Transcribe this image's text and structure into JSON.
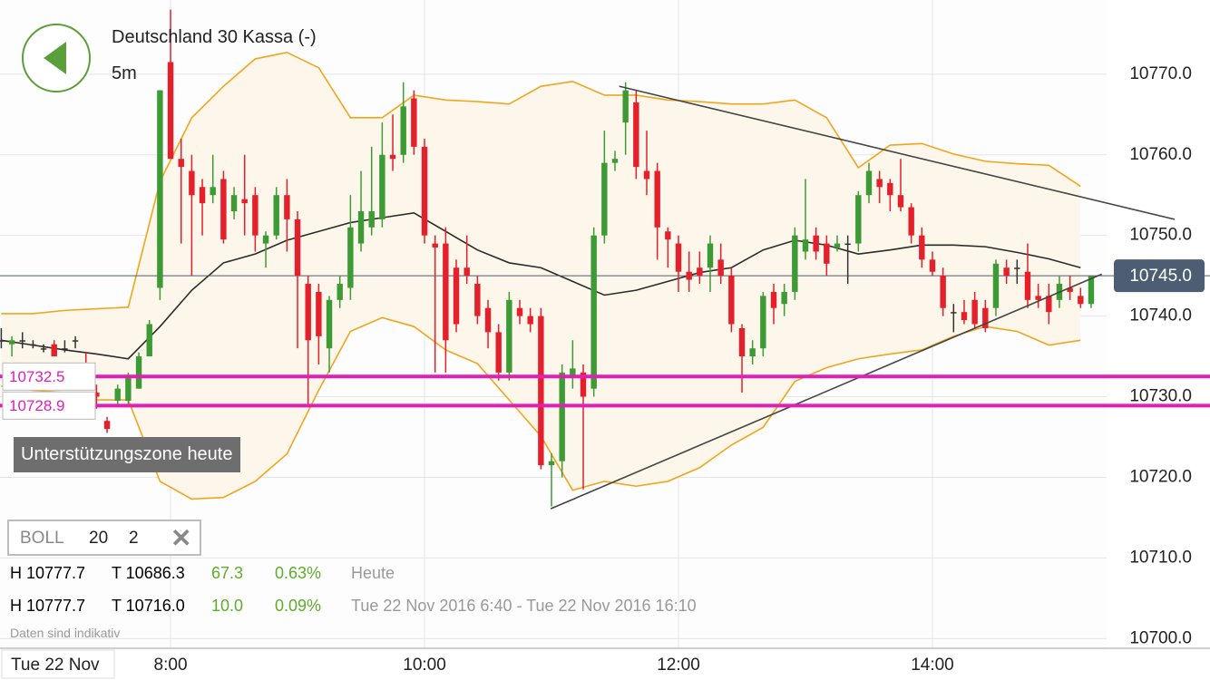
{
  "chart_data": {
    "type": "candlestick",
    "title": "Deutschland 30 Kassa (-)",
    "subtitle": "5m",
    "date_label": "Tue 22 Nov",
    "xlim": [
      399.4,
      922.3
    ],
    "ylim": [
      10698.8,
      10779.2
    ],
    "xticks": [
      {
        "value": 480,
        "label": "8:00"
      },
      {
        "value": 600,
        "label": "10:00"
      },
      {
        "value": 720,
        "label": "12:00"
      },
      {
        "value": 840,
        "label": "14:00"
      }
    ],
    "yticks": [
      {
        "value": 10700,
        "label": "10700.0"
      },
      {
        "value": 10710,
        "label": "10710.0"
      },
      {
        "value": 10720,
        "label": "10720.0"
      },
      {
        "value": 10730,
        "label": "10730.0"
      },
      {
        "value": 10740,
        "label": "10740.0"
      },
      {
        "value": 10750,
        "label": "10750.0"
      },
      {
        "value": 10760,
        "label": "10760.0"
      },
      {
        "value": 10770,
        "label": "10770.0"
      }
    ],
    "grid": true,
    "up_color": "#3d9b35",
    "down_color": "#e3202b",
    "flat_color": "#333333",
    "x": [
      400,
      405,
      410,
      415,
      420,
      425,
      430,
      435,
      440,
      445,
      450,
      455,
      460,
      465,
      470,
      475,
      480,
      485,
      490,
      495,
      500,
      505,
      510,
      515,
      520,
      525,
      530,
      535,
      540,
      545,
      550,
      555,
      560,
      565,
      570,
      575,
      580,
      585,
      590,
      595,
      600,
      605,
      610,
      615,
      620,
      625,
      630,
      635,
      640,
      645,
      650,
      655,
      660,
      665,
      670,
      675,
      680,
      685,
      690,
      695,
      700,
      705,
      710,
      715,
      720,
      725,
      730,
      735,
      740,
      745,
      750,
      755,
      760,
      765,
      770,
      775,
      780,
      785,
      790,
      795,
      800,
      805,
      810,
      815,
      820,
      825,
      830,
      835,
      840,
      845,
      850,
      855,
      860,
      865,
      870,
      875,
      880,
      885,
      890,
      895,
      900,
      905,
      910,
      915
    ],
    "open": [
      10737,
      10736.5,
      10737,
      10736.5,
      10736,
      10736.5,
      10736,
      10737,
      10734,
      10730.5,
      10727,
      10729.5,
      10729.5,
      10731,
      10735,
      10743.5,
      10771.5,
      10759.5,
      10758,
      10756,
      10755,
      10757,
      10753,
      10754.5,
      10755,
      10749,
      10750,
      10755,
      10752,
      10744,
      10743,
      10736,
      10742,
      10743.5,
      10749,
      10751,
      10752,
      10760,
      10760,
      10767,
      10761,
      10749,
      10749,
      10746,
      10746,
      10744,
      10741,
      10738,
      10733,
      10741,
      10740,
      10740,
      10721.5,
      10722,
      10732.5,
      10733,
      10731,
      10750,
      10759,
      10764,
      10766.5,
      10758,
      10758,
      10750.5,
      10749,
      10745.5,
      10746,
      10746,
      10747,
      10745,
      10738.5,
      10735,
      10736,
      10743,
      10741.5,
      10743,
      10748,
      10750,
      10749,
      10748.5,
      10749,
      10749,
      10755,
      10757,
      10756.5,
      10755,
      10753.5,
      10750,
      10747,
      10745,
      10740.5,
      10740.5,
      10742,
      10741,
      10741,
      10746,
      10746,
      10745.5,
      10742.5,
      10742.5,
      10742,
      10743.5,
      10742.5,
      10741.5
    ],
    "high": [
      10738.5,
      10737.5,
      10738,
      10737,
      10736.5,
      10737,
      10737,
      10737.5,
      10735.5,
      10731.5,
      10727.5,
      10731.5,
      10733,
      10735.5,
      10739.5,
      10768,
      10778,
      10762,
      10760,
      10757,
      10760,
      10758,
      10756,
      10760,
      10756,
      10750.5,
      10756,
      10757,
      10753,
      10745,
      10744,
      10742.5,
      10745,
      10755,
      10758,
      10761,
      10764,
      10765,
      10769,
      10768,
      10762,
      10750,
      10751,
      10747,
      10750,
      10745,
      10742,
      10739,
      10743,
      10742,
      10741,
      10741,
      10723,
      10734,
      10737,
      10734,
      10751,
      10763,
      10760.5,
      10769,
      10768,
      10763,
      10759,
      10751,
      10750,
      10748,
      10748,
      10750,
      10749,
      10746,
      10739,
      10737,
      10743,
      10744,
      10744,
      10751,
      10757,
      10751,
      10750,
      10750,
      10750,
      10755.5,
      10759,
      10758,
      10757,
      10759.5,
      10754,
      10751,
      10748,
      10746,
      10741.5,
      10742,
      10743,
      10742,
      10747,
      10747,
      10747,
      10749,
      10744,
      10744,
      10745,
      10745,
      10743.5,
      10745
    ],
    "low": [
      10736,
      10735,
      10736,
      10736,
      10735.5,
      10735,
      10735.5,
      10736,
      10731,
      10728.5,
      10725.5,
      10729,
      10729,
      10731,
      10735,
      10742,
      10759.5,
      10749,
      10745,
      10750,
      10754,
      10749,
      10752,
      10750,
      10748,
      10746,
      10749.5,
      10748,
      10736,
      10729,
      10734,
      10733,
      10741,
      10742,
      10748,
      10750,
      10751,
      10758,
      10759,
      10760,
      10749,
      10733,
      10733,
      10738,
      10744,
      10739,
      10736,
      10732,
      10732,
      10739,
      10738,
      10721,
      10716.4,
      10720,
      10731,
      10718.5,
      10730,
      10749,
      10758,
      10760,
      10757,
      10755,
      10747,
      10746,
      10743,
      10743,
      10744,
      10743,
      10744,
      10738,
      10730.5,
      10734,
      10735,
      10739,
      10740,
      10742,
      10747,
      10747,
      10745,
      10748,
      10744,
      10748,
      10754,
      10754,
      10753,
      10753,
      10749,
      10746,
      10745,
      10740,
      10738,
      10739,
      10738.5,
      10738,
      10740,
      10744,
      10744,
      10741,
      10741,
      10739,
      10741,
      10742,
      10741,
      10741
    ],
    "close": [
      10737,
      10737,
      10737,
      10736.5,
      10736,
      10735,
      10736,
      10737,
      10732,
      10730,
      10726,
      10731,
      10732.5,
      10735,
      10739,
      10768,
      10759.5,
      10758.5,
      10755,
      10754,
      10756,
      10749.5,
      10755,
      10754,
      10750,
      10750,
      10755,
      10752,
      10745,
      10737,
      10737.5,
      10742,
      10744,
      10751,
      10753,
      10753,
      10760,
      10759.5,
      10766,
      10761,
      10750,
      10748.5,
      10737,
      10739,
      10745,
      10740,
      10738,
      10733,
      10742,
      10740,
      10739,
      10721.5,
      10722,
      10733,
      10733.5,
      10730,
      10750,
      10759,
      10759.5,
      10768,
      10758.5,
      10757,
      10751,
      10749.5,
      10745.5,
      10744.5,
      10745,
      10749,
      10745,
      10739,
      10735,
      10736,
      10742.5,
      10741,
      10743,
      10750,
      10749.5,
      10748,
      10746.5,
      10749,
      10749,
      10755,
      10758,
      10756,
      10755,
      10753.5,
      10750,
      10747,
      10745.5,
      10741,
      10740.5,
      10739.5,
      10739,
      10738.5,
      10746.5,
      10745,
      10746,
      10742,
      10742,
      10740.5,
      10744,
      10743,
      10741.5,
      10745
    ],
    "bollinger": {
      "color": "#f2a51c",
      "fill": "#fdf6ea",
      "middle_color": "#2b2b2b",
      "x": [
        400,
        415,
        430,
        445,
        460,
        475,
        490,
        505,
        520,
        535,
        550,
        565,
        580,
        595,
        610,
        625,
        640,
        655,
        670,
        685,
        700,
        715,
        730,
        745,
        760,
        775,
        790,
        805,
        820,
        835,
        850,
        865,
        880,
        895,
        910
      ],
      "upper": [
        10740.3,
        10740.3,
        10740.7,
        10740.9,
        10741.1,
        10756.7,
        10764.6,
        10768.5,
        10771.9,
        10772.7,
        10770.8,
        10764.6,
        10764.6,
        10767.4,
        10766.8,
        10766.6,
        10766.3,
        10768.5,
        10769.1,
        10767.4,
        10767.4,
        10766.8,
        10766.6,
        10766.3,
        10766.3,
        10766.8,
        10764.6,
        10758.4,
        10761.2,
        10761.4,
        10760.1,
        10759.2,
        10758.9,
        10758.7,
        10756.1
      ],
      "middle": [
        10737.0,
        10736.4,
        10735.8,
        10735.3,
        10734.7,
        10738.7,
        10743.2,
        10746.6,
        10747.7,
        10749.4,
        10750.5,
        10751.6,
        10752.2,
        10752.8,
        10750.5,
        10748.2,
        10746.6,
        10746.0,
        10744.3,
        10742.6,
        10743.2,
        10744.3,
        10745.4,
        10746.0,
        10748.2,
        10749.4,
        10748.8,
        10747.7,
        10748.2,
        10748.8,
        10748.8,
        10748.6,
        10747.9,
        10747.1,
        10746.0
      ],
      "lower": [
        10731.3,
        10730.8,
        10730.5,
        10729.6,
        10729.6,
        10719.5,
        10717.3,
        10717.5,
        10719.5,
        10722.9,
        10730.8,
        10738.1,
        10739.8,
        10738.7,
        10735.8,
        10734.1,
        10729.6,
        10725.1,
        10718.4,
        10719.5,
        10718.9,
        10719.5,
        10721.2,
        10724.0,
        10726.2,
        10731.9,
        10733.6,
        10734.7,
        10735.3,
        10735.8,
        10737.5,
        10738.7,
        10738.1,
        10736.4,
        10737.0
      ]
    },
    "trendlines": [
      {
        "x": [
          692,
          954.4
        ],
        "y": [
          10768.5,
          10752.0
        ],
        "color": "#444444"
      },
      {
        "x": [
          659.6,
          920
        ],
        "y": [
          10716.1,
          10745.2
        ],
        "color": "#444444"
      }
    ],
    "levels": [
      {
        "value": 10732.5,
        "color": "#e21fb4"
      },
      {
        "value": 10728.9,
        "color": "#e21fb4"
      }
    ],
    "current_price": {
      "value": 10745.0,
      "label": "10745.0",
      "color": "#4d5d73"
    },
    "annotation": "Unterstützungszone heute",
    "indicator": {
      "name": "BOLL",
      "period": "20",
      "deviation": "2"
    },
    "stats": [
      {
        "high": "H 10777.7",
        "low": "T 10686.3",
        "change": "67.3",
        "percent": "0.63%",
        "period": "Heute"
      },
      {
        "high": "H 10777.7",
        "low": "T 10716.0",
        "change": "10.0",
        "percent": "0.09%",
        "period": "Tue 22 Nov 2016 6:40 - Tue 22 Nov 2016 16:10"
      }
    ],
    "note": "Daten sind indikativ"
  }
}
